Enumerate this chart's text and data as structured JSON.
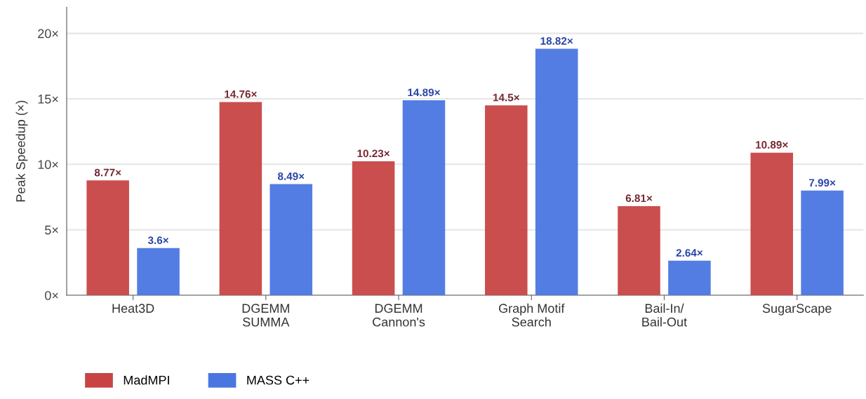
{
  "chart_data": {
    "type": "bar",
    "ylabel": "Peak Speedup (×)",
    "categories": [
      "Heat3D",
      "DGEMM\nSUMMA",
      "DGEMM\nCannon's",
      "Graph Motif\nSearch",
      "Bail-In/\nBail-Out",
      "SugarScape"
    ],
    "series": [
      {
        "name": "MadMPI",
        "color": "#c84444",
        "values": [
          8.77,
          14.76,
          10.23,
          14.5,
          6.81,
          10.89
        ],
        "value_labels": [
          "8.77×",
          "14.76×",
          "10.23×",
          "14.5×",
          "6.81×",
          "10.89×"
        ]
      },
      {
        "name": "MASS C++",
        "color": "#4a76e0",
        "values": [
          3.6,
          8.49,
          14.89,
          18.82,
          2.64,
          7.99
        ],
        "value_labels": [
          "3.6×",
          "8.49×",
          "14.89×",
          "18.82×",
          "2.64×",
          "7.99×"
        ]
      }
    ],
    "ylim": [
      0,
      22
    ],
    "yticks": [
      {
        "value": 0,
        "label": "0×"
      },
      {
        "value": 5,
        "label": "5×"
      },
      {
        "value": 10,
        "label": "10×"
      },
      {
        "value": 15,
        "label": "15×"
      },
      {
        "value": 20,
        "label": "20×"
      }
    ],
    "grid": "y",
    "legend": "bottom left"
  }
}
